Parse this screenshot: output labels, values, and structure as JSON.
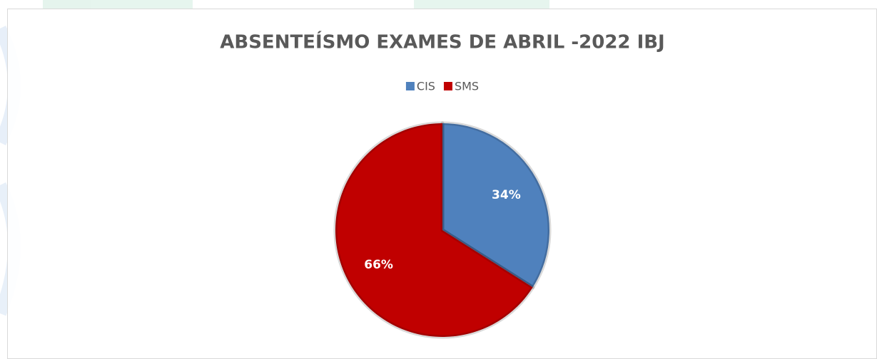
{
  "chart_data": {
    "type": "pie",
    "title": "ABSENTEÍSMO EXAMES DE ABRIL -2022 IBJ",
    "categories": [
      "CIS",
      "SMS"
    ],
    "values": [
      34,
      66
    ],
    "value_labels": [
      "34%",
      "66%"
    ],
    "colors": [
      "#4f81bd",
      "#c00000"
    ],
    "legend": "top"
  }
}
